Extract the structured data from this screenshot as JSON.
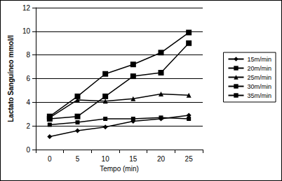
{
  "chart_data": {
    "type": "line",
    "x_label": "Tempo (min)",
    "y_label": "Lactato Sanguíneo mmol/l",
    "categories": [
      "0",
      "5",
      "10",
      "15",
      "20",
      "25"
    ],
    "series": [
      {
        "name": "15m/min",
        "color": "#000000",
        "marker": "diamond",
        "values": [
          1.1,
          1.6,
          1.9,
          2.4,
          2.6,
          2.9
        ]
      },
      {
        "name": "20m/min",
        "color": "#000000",
        "marker": "square",
        "values": [
          2.1,
          2.3,
          2.6,
          2.6,
          2.7,
          2.6
        ]
      },
      {
        "name": "25m/min",
        "color": "#000000",
        "marker": "triangle",
        "values": [
          2.7,
          4.2,
          4.1,
          4.3,
          4.7,
          4.6
        ]
      },
      {
        "name": "30m/min",
        "color": "#000000",
        "marker": "square",
        "values": [
          2.6,
          2.8,
          4.5,
          6.2,
          6.5,
          9.0
        ]
      },
      {
        "name": "35m/min",
        "color": "#000000",
        "marker": "square",
        "values": [
          2.8,
          4.5,
          6.4,
          7.2,
          8.2,
          9.9
        ]
      }
    ],
    "ylim": [
      0,
      12
    ],
    "yticks": [
      0,
      2,
      4,
      6,
      8,
      10,
      12
    ],
    "grid": true,
    "legend": "right"
  }
}
